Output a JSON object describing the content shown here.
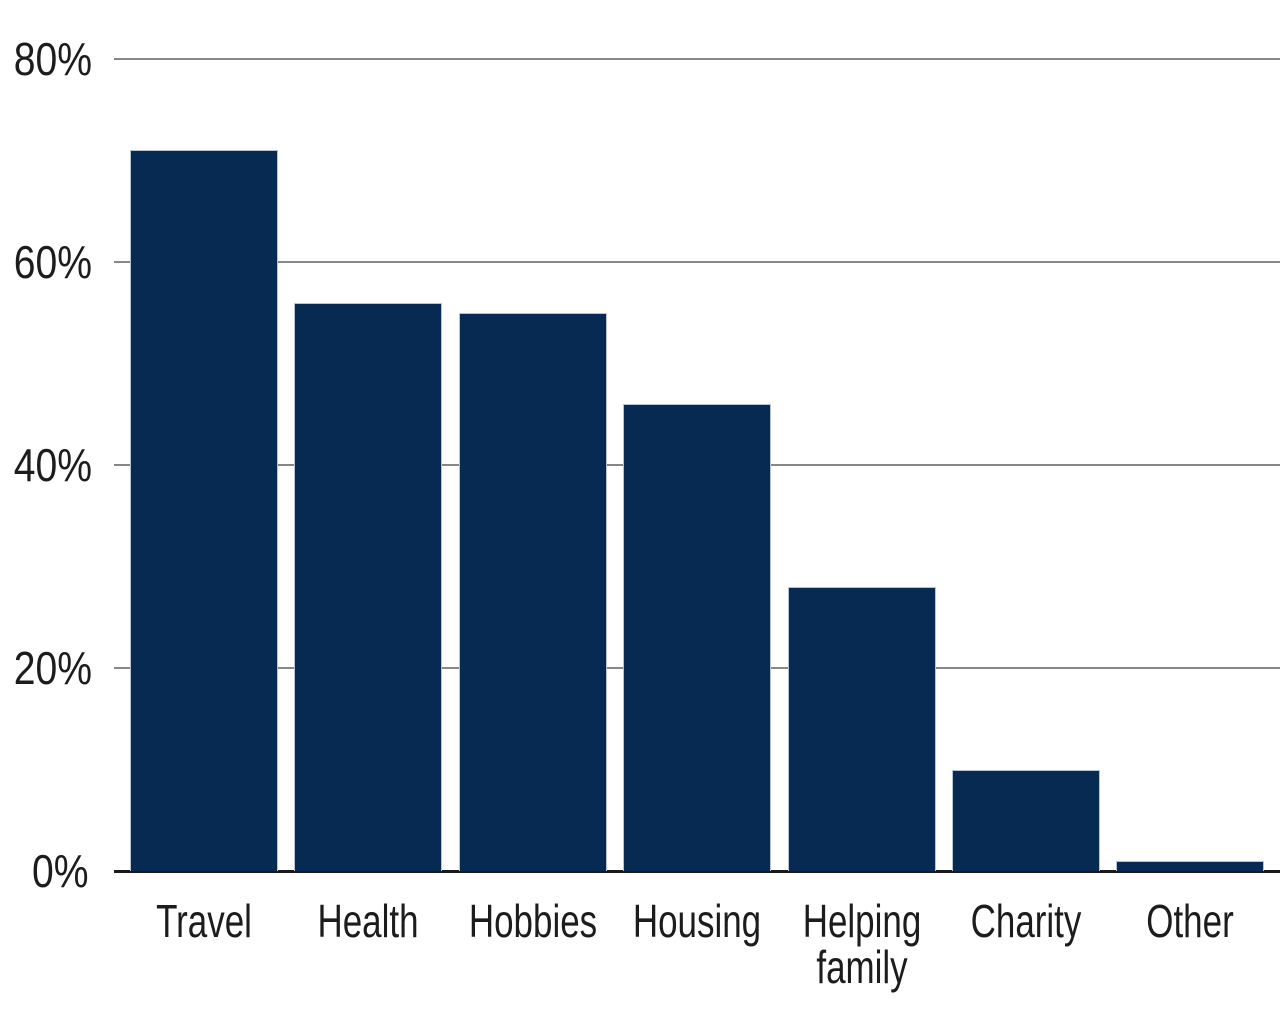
{
  "chart_data": {
    "type": "bar",
    "title": "",
    "xlabel": "",
    "ylabel": "",
    "categories": [
      "Travel",
      "Health",
      "Hobbies",
      "Housing",
      "Helping family",
      "Charity",
      "Other"
    ],
    "values": [
      71,
      56,
      55,
      46,
      28,
      10,
      1
    ],
    "unit": "%",
    "ylim": [
      0,
      80
    ],
    "yticks": [
      0,
      20,
      40,
      60,
      80
    ],
    "ytick_labels": [
      "0%",
      "20%",
      "40%",
      "60%",
      "80%"
    ],
    "grid": true,
    "legend": false,
    "colors": {
      "bar": "#062a52",
      "bar_edge": "#b9c3d2",
      "gridline": "#878787",
      "axis_line": "#1a1a1a",
      "text": "#1c1c1c",
      "background": "#ffffff"
    }
  }
}
